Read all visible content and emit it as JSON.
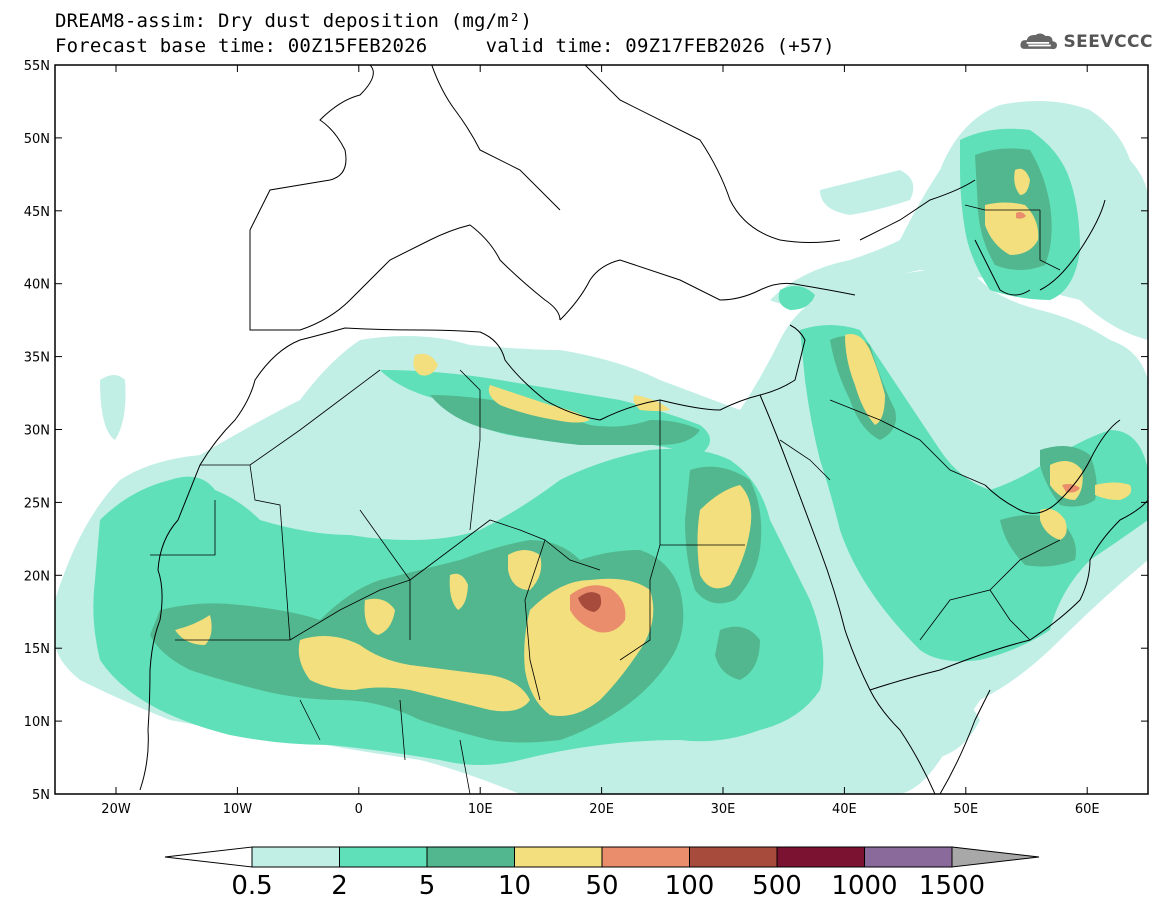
{
  "title": {
    "line1": "DREAM8-assim: Dry dust deposition (mg/m²)",
    "line2": "Forecast base time: 00Z15FEB2026     valid time: 09Z17FEB2026 (+57)"
  },
  "logo": {
    "text": "SEEVCCC",
    "icon": "cloud-icon"
  },
  "map": {
    "lat_labels": [
      "55N",
      "50N",
      "45N",
      "40N",
      "35N",
      "30N",
      "25N",
      "20N",
      "15N",
      "10N",
      "5N"
    ],
    "lon_labels": [
      "20W",
      "10W",
      "0",
      "10E",
      "20E",
      "30E",
      "40E",
      "50E",
      "60E"
    ]
  },
  "colorbar": {
    "labels": [
      "0.5",
      "2",
      "5",
      "10",
      "50",
      "100",
      "500",
      "1000",
      "1500"
    ],
    "colors": [
      "#c1efe6",
      "#5fe0b8",
      "#52b78e",
      "#f3df7d",
      "#e98d6c",
      "#a74c3d",
      "#7b1231",
      "#8a6a9b",
      "#a8a8a8"
    ]
  },
  "colors": {
    "level1": "#c1efe6",
    "level2": "#5fe0b8",
    "level3": "#52b78e",
    "level4": "#f3df7d",
    "level5": "#e98d6c",
    "level6": "#a74c3d"
  }
}
